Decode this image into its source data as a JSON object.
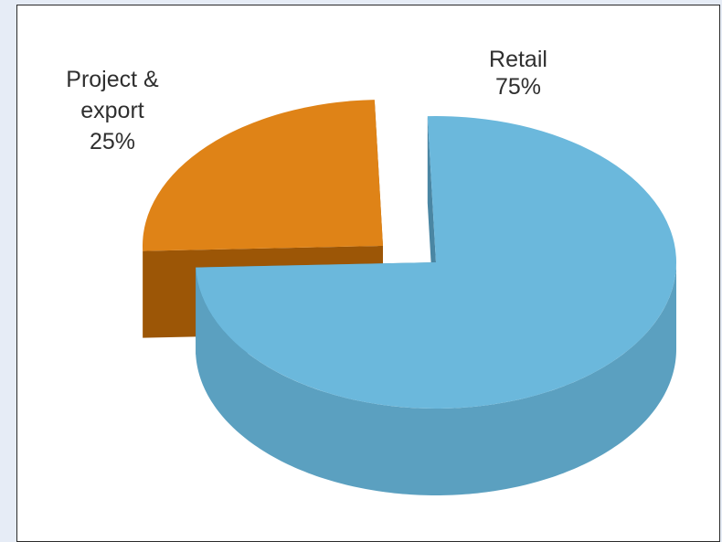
{
  "chart_data": {
    "type": "pie",
    "title": "",
    "slices": [
      {
        "name": "Retail",
        "label_lines": [
          "Retail"
        ],
        "pct_label": "75%",
        "value": 75,
        "color": "#6bb8dc",
        "side_color": "#5ba0c0",
        "dark_color": "#4a86a3"
      },
      {
        "name": "Project & export",
        "label_lines": [
          "Project &",
          "export"
        ],
        "pct_label": "25%",
        "value": 25,
        "color": "#df8317",
        "side_color": "#c46f0c",
        "dark_color": "#9c5606"
      }
    ],
    "legend": "none",
    "grid": false
  }
}
